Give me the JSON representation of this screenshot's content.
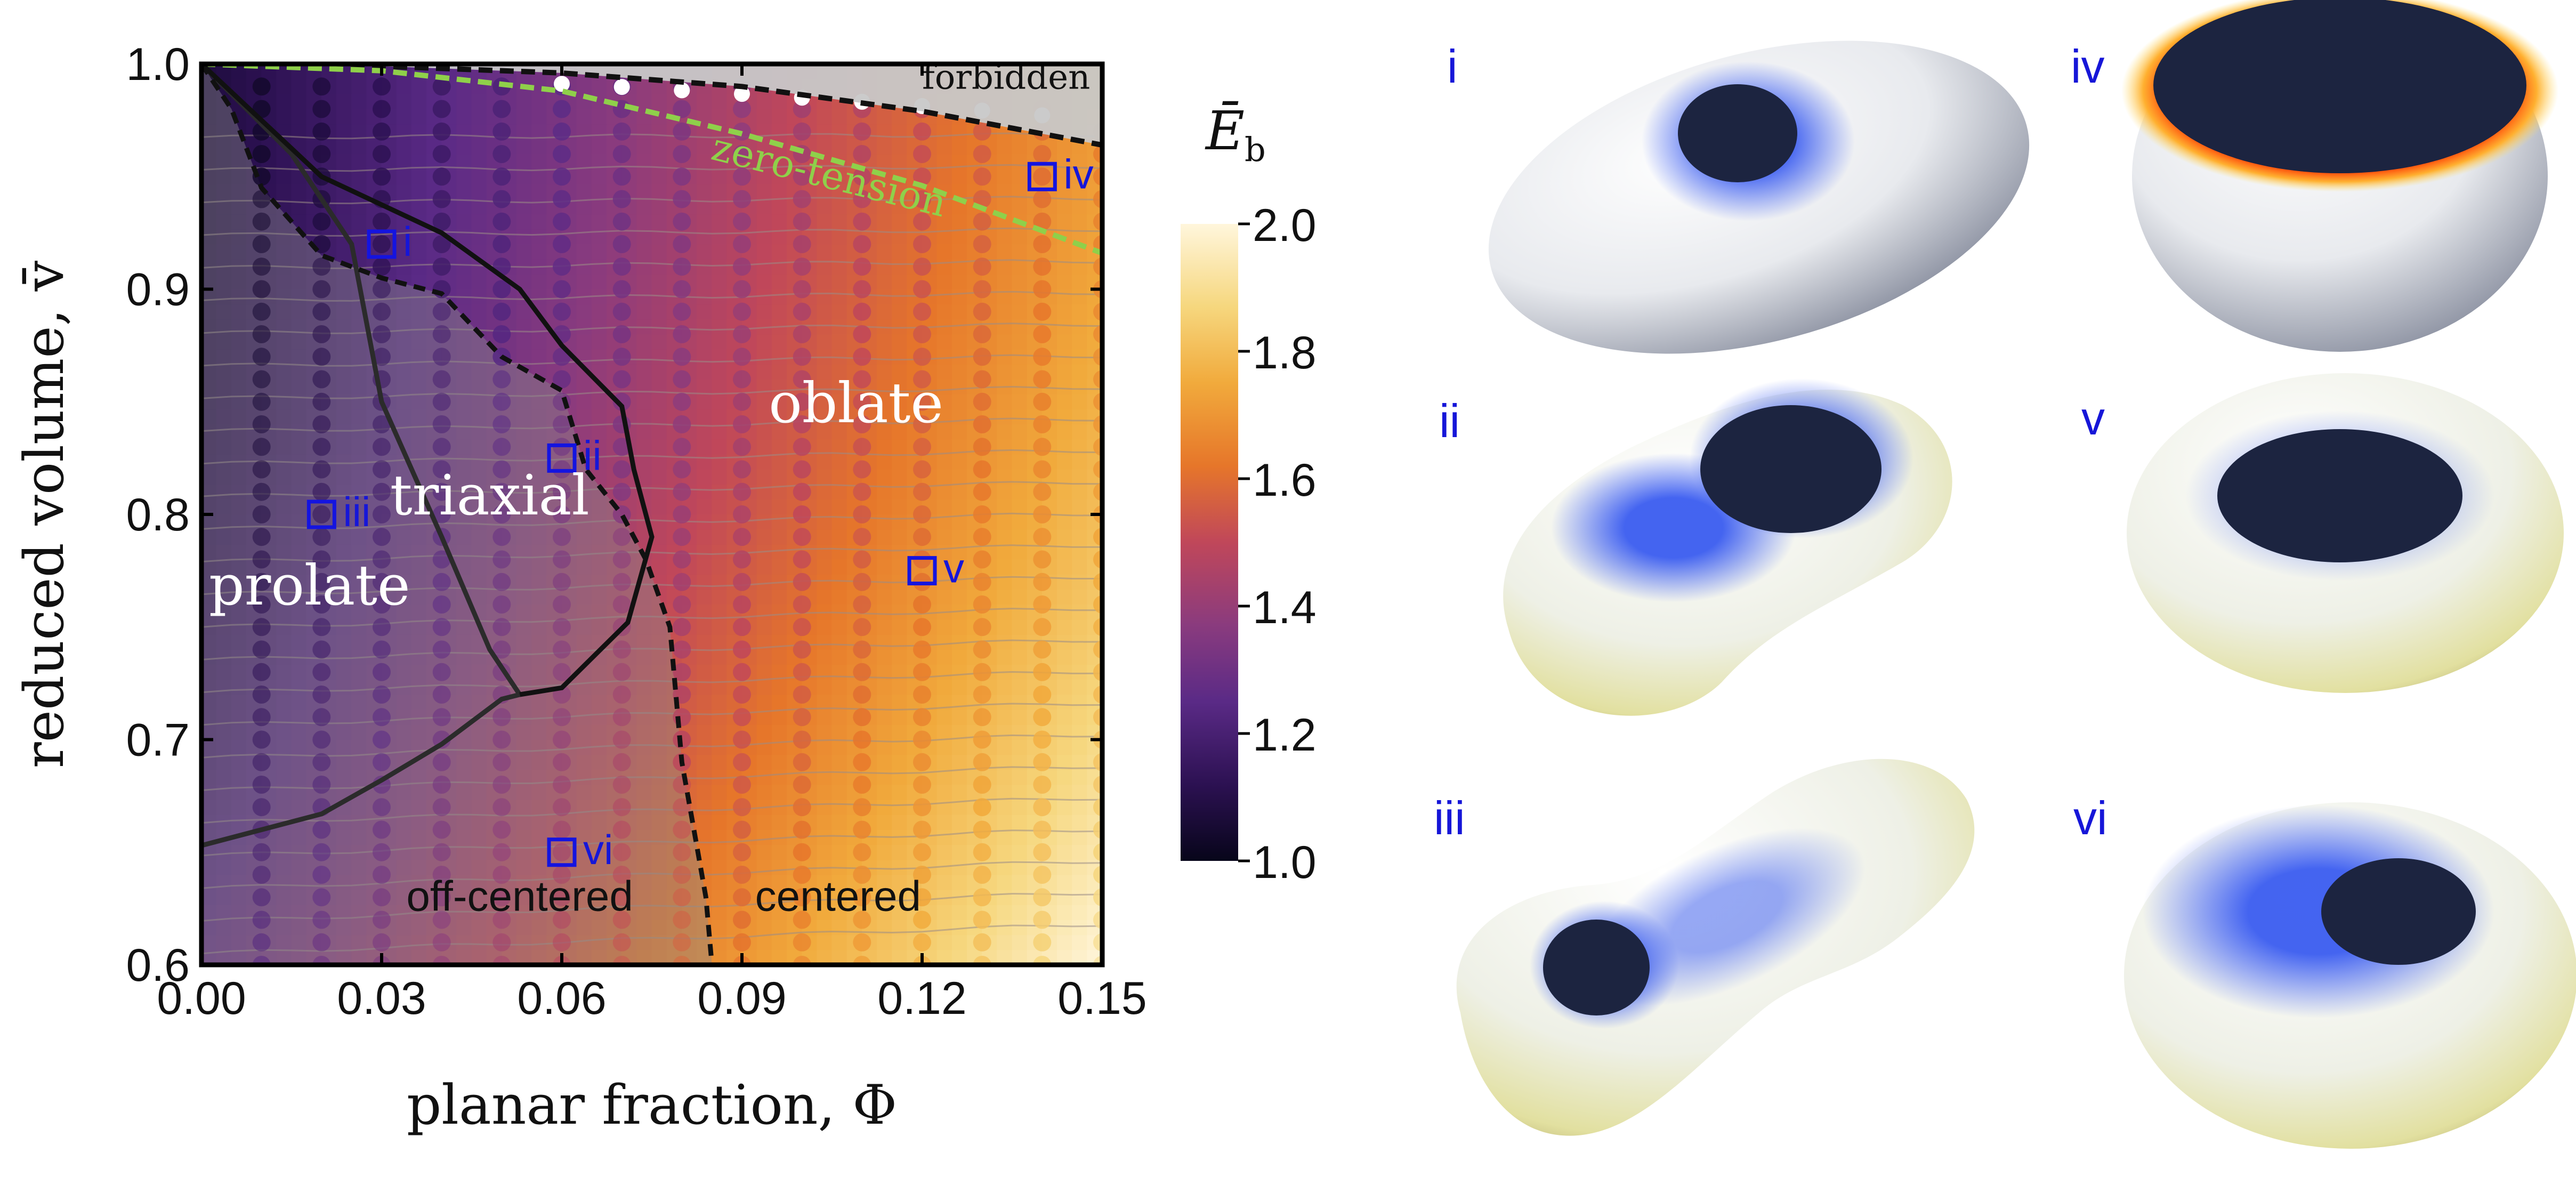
{
  "chart_data": [
    {
      "type": "heatmap",
      "title": "",
      "xlabel": "planar fraction, Φ",
      "ylabel": "reduced volume, v̄",
      "xlim": [
        0.0,
        0.15
      ],
      "ylim": [
        0.6,
        1.0
      ],
      "x_ticks": [
        0.0,
        0.03,
        0.06,
        0.09,
        0.12,
        0.15
      ],
      "x_tick_labels": [
        "0.00",
        "0.03",
        "0.06",
        "0.09",
        "0.12",
        "0.15"
      ],
      "y_ticks": [
        0.6,
        0.7,
        0.8,
        0.9,
        1.0
      ],
      "y_tick_labels": [
        "0.6",
        "0.7",
        "0.8",
        "0.9",
        "1.0"
      ],
      "colorbar": {
        "label": "Ēb",
        "label_main": "Ē",
        "label_sub": "b",
        "range": [
          1.0,
          2.0
        ],
        "ticks": [
          1.0,
          1.2,
          1.4,
          1.6,
          1.8,
          2.0
        ],
        "tick_labels": [
          "1.0",
          "1.2",
          "1.4",
          "1.6",
          "1.8",
          "2.0"
        ],
        "colors": [
          "#07051a",
          "#2c1152",
          "#5a2a86",
          "#8a3b7e",
          "#c0475a",
          "#e6762a",
          "#f1aa3c",
          "#f6d77e",
          "#fff6dc"
        ]
      },
      "grid": {
        "phi_values": [
          0.01,
          0.02,
          0.03,
          0.04,
          0.05,
          0.06,
          0.07,
          0.08,
          0.09,
          0.1,
          0.11,
          0.12,
          0.13,
          0.14,
          0.15
        ],
        "v_values": [
          0.6,
          0.61,
          0.62,
          0.63,
          0.64,
          0.65,
          0.66,
          0.67,
          0.68,
          0.69,
          0.7,
          0.71,
          0.72,
          0.73,
          0.74,
          0.75,
          0.76,
          0.77,
          0.78,
          0.79,
          0.8,
          0.81,
          0.82,
          0.83,
          0.84,
          0.85,
          0.86,
          0.87,
          0.88,
          0.89,
          0.9,
          0.91,
          0.92,
          0.93,
          0.94,
          0.95,
          0.96,
          0.97,
          0.98,
          0.99
        ],
        "note": "simulation points on a regular grid; energy increases with planar fraction"
      },
      "region_labels": [
        {
          "text": "forbidden",
          "phi": 0.134,
          "v": 0.989
        },
        {
          "text": "oblate",
          "phi": 0.109,
          "v": 0.841
        },
        {
          "text": "triaxial",
          "phi": 0.048,
          "v": 0.8
        },
        {
          "text": "prolate",
          "phi": 0.018,
          "v": 0.76
        },
        {
          "text": "off-centered",
          "phi": 0.053,
          "v": 0.624
        },
        {
          "text": "centered",
          "phi": 0.106,
          "v": 0.624
        }
      ],
      "annotation": {
        "text": "zero-tension",
        "phi": 0.104,
        "v": 0.945
      },
      "boundaries": {
        "forbidden_limit": {
          "style": "dashed",
          "points": [
            [
              0.0,
              1.0
            ],
            [
              0.03,
              0.999
            ],
            [
              0.06,
              0.996
            ],
            [
              0.09,
              0.99
            ],
            [
              0.12,
              0.979
            ],
            [
              0.15,
              0.964
            ]
          ]
        },
        "zero_tension": {
          "style": "dashed-green",
          "points": [
            [
              0.0,
              1.0
            ],
            [
              0.03,
              0.997
            ],
            [
              0.06,
              0.988
            ],
            [
              0.09,
              0.969
            ],
            [
              0.12,
              0.946
            ],
            [
              0.15,
              0.916
            ]
          ]
        },
        "prolate_triaxial": {
          "style": "solid",
          "points": [
            [
              0.0,
              1.0
            ],
            [
              0.015,
              0.96
            ],
            [
              0.025,
              0.92
            ],
            [
              0.03,
              0.85
            ],
            [
              0.04,
              0.79
            ],
            [
              0.048,
              0.74
            ],
            [
              0.053,
              0.72
            ]
          ]
        },
        "triaxial_upper": {
          "style": "solid",
          "points": [
            [
              0.0,
              1.0
            ],
            [
              0.02,
              0.95
            ],
            [
              0.04,
              0.925
            ],
            [
              0.053,
              0.9
            ],
            [
              0.06,
              0.875
            ],
            [
              0.07,
              0.848
            ],
            [
              0.072,
              0.82
            ],
            [
              0.075,
              0.79
            ],
            [
              0.071,
              0.752
            ],
            [
              0.06,
              0.723
            ],
            [
              0.053,
              0.72
            ]
          ]
        },
        "off_centered": {
          "style": "dashed",
          "points": [
            [
              0.0,
              1.0
            ],
            [
              0.005,
              0.98
            ],
            [
              0.01,
              0.945
            ],
            [
              0.02,
              0.915
            ],
            [
              0.03,
              0.905
            ],
            [
              0.04,
              0.898
            ],
            [
              0.05,
              0.87
            ],
            [
              0.06,
              0.855
            ],
            [
              0.064,
              0.82
            ],
            [
              0.07,
              0.8
            ],
            [
              0.074,
              0.78
            ],
            [
              0.078,
              0.75
            ],
            [
              0.079,
              0.72
            ],
            [
              0.08,
              0.69
            ],
            [
              0.082,
              0.66
            ],
            [
              0.084,
              0.63
            ],
            [
              0.085,
              0.6
            ]
          ]
        },
        "lower_prolate": {
          "style": "solid",
          "points": [
            [
              0.0,
              0.653
            ],
            [
              0.02,
              0.667
            ],
            [
              0.03,
              0.682
            ],
            [
              0.04,
              0.698
            ],
            [
              0.05,
              0.718
            ],
            [
              0.053,
              0.72
            ]
          ]
        }
      },
      "markers": [
        {
          "label": "i",
          "phi": 0.03,
          "v": 0.92
        },
        {
          "label": "ii",
          "phi": 0.06,
          "v": 0.825
        },
        {
          "label": "iii",
          "phi": 0.02,
          "v": 0.8
        },
        {
          "label": "iv",
          "phi": 0.14,
          "v": 0.95
        },
        {
          "label": "v",
          "phi": 0.12,
          "v": 0.775
        },
        {
          "label": "vi",
          "phi": 0.06,
          "v": 0.65
        }
      ]
    }
  ],
  "shapes": [
    {
      "label": "i",
      "description": "oblate-ish ellipsoid with dark planar patch",
      "patch_color": "#1c2440",
      "halo_color": "#4a6cf0",
      "body_color": "#e9ecef"
    },
    {
      "label": "iv",
      "description": "cup-shaped vesicle with large dark top",
      "patch_color": "#1c2440",
      "halo_color": "#e65a20",
      "body_color": "#e6e8ec"
    },
    {
      "label": "ii",
      "description": "triaxial vesicle with blue shading",
      "patch_color": "#1c2440",
      "halo_color": "#4a6cf0",
      "body_color": "#eceee8"
    },
    {
      "label": "v",
      "description": "oblate vesicle with centered patch",
      "patch_color": "#1c2440",
      "halo_color": "#4a6cf0",
      "body_color": "#eef0ea"
    },
    {
      "label": "iii",
      "description": "elongated prolate vesicle",
      "patch_color": "#1c2440",
      "halo_color": "#4a6cf0",
      "body_color": "#eef0ea"
    },
    {
      "label": "vi",
      "description": "oblate vesicle with off-centered patch",
      "patch_color": "#1c2440",
      "halo_color": "#4a6cf0",
      "body_color": "#eef0d0"
    }
  ],
  "colors": {
    "label_blue": "#1616d8",
    "marker_blue": "#1414e0",
    "zero_tension_green": "#8fd04a",
    "forbidden_gray": "#c8c8c8",
    "boundary_black": "#111111"
  }
}
